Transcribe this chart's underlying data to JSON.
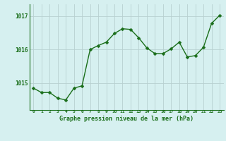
{
  "x": [
    0,
    1,
    2,
    3,
    4,
    5,
    6,
    7,
    8,
    9,
    10,
    11,
    12,
    13,
    14,
    15,
    16,
    17,
    18,
    19,
    20,
    21,
    22,
    23
  ],
  "y": [
    1014.85,
    1014.72,
    1014.72,
    1014.55,
    1014.5,
    1014.85,
    1014.92,
    1016.0,
    1016.12,
    1016.22,
    1016.48,
    1016.62,
    1016.6,
    1016.35,
    1016.05,
    1015.88,
    1015.88,
    1016.02,
    1016.22,
    1015.78,
    1015.82,
    1016.07,
    1016.78,
    1017.02
  ],
  "line_color": "#1a6e1a",
  "marker_color": "#1a6e1a",
  "bg_color": "#d6f0f0",
  "grid_color": "#b8d0d0",
  "tick_label_color": "#1a6e1a",
  "xlabel": "Graphe pression niveau de la mer (hPa)",
  "xlabel_color": "#1a6e1a",
  "ylim": [
    1014.2,
    1017.35
  ],
  "yticks": [
    1015,
    1016,
    1017
  ],
  "xticks": [
    0,
    1,
    2,
    3,
    4,
    5,
    6,
    7,
    8,
    9,
    10,
    11,
    12,
    13,
    14,
    15,
    16,
    17,
    18,
    19,
    20,
    21,
    22,
    23
  ],
  "xtick_labels": [
    "0",
    "1",
    "2",
    "3",
    "4",
    "5",
    "6",
    "7",
    "8",
    "9",
    "10",
    "11",
    "12",
    "13",
    "14",
    "15",
    "16",
    "17",
    "18",
    "19",
    "20",
    "21",
    "22",
    "23"
  ],
  "line_width": 1.0,
  "marker_size": 2.5
}
